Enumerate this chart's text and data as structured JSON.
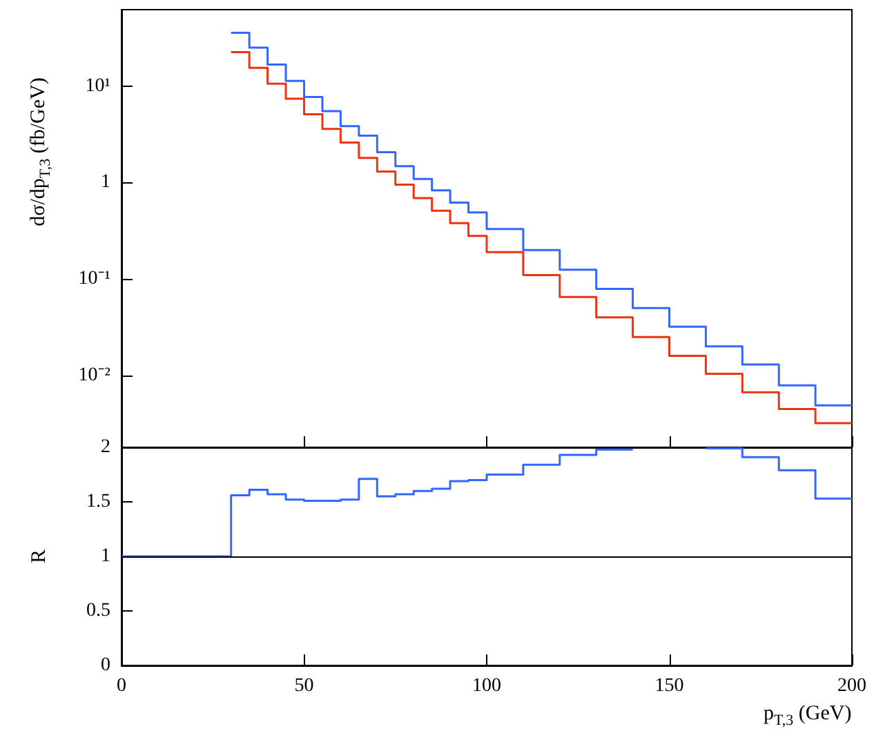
{
  "chart_data": [
    {
      "type": "step",
      "ylabel": "dσ/dp$_{T,3}$ (fb/GeV)",
      "log": "y",
      "grid": false,
      "tick_labels": "y",
      "xlim": [
        0,
        200
      ],
      "xticks": [
        0,
        50,
        100,
        150,
        200
      ],
      "ylim": [
        0.0018,
        62
      ],
      "yticks": [
        {
          "value": 0.01,
          "label": "10⁻²"
        },
        {
          "value": 0.1,
          "label": "10⁻¹"
        },
        {
          "value": 1,
          "label": "1"
        },
        {
          "value": 10,
          "label": "10¹"
        }
      ],
      "series": [
        {
          "color": "#ee3311",
          "x": [
            30,
            35,
            40,
            45,
            50,
            55,
            60,
            65,
            70,
            75,
            80,
            85,
            90,
            95,
            100,
            110,
            120,
            130,
            140,
            150,
            160,
            170,
            180,
            190,
            200
          ],
          "values": [
            22.5,
            15.5,
            10.6,
            7.4,
            5.1,
            3.6,
            2.6,
            1.8,
            1.3,
            0.95,
            0.69,
            0.51,
            0.38,
            0.28,
            0.19,
            0.11,
            0.065,
            0.04,
            0.025,
            0.016,
            0.0104,
            0.0067,
            0.0045,
            0.0032,
            0.0032
          ]
        },
        {
          "color": "#3366ff",
          "x": [
            30,
            35,
            40,
            45,
            50,
            55,
            60,
            65,
            70,
            75,
            80,
            85,
            90,
            95,
            100,
            110,
            120,
            130,
            140,
            150,
            160,
            170,
            180,
            190,
            200
          ],
          "values": [
            35.7,
            25.1,
            16.7,
            11.3,
            7.7,
            5.5,
            3.85,
            3.06,
            2.06,
            1.48,
            1.09,
            0.83,
            0.62,
            0.49,
            0.33,
            0.2,
            0.125,
            0.079,
            0.05,
            0.032,
            0.02,
            0.013,
            0.0079,
            0.0049,
            0.0049
          ]
        }
      ]
    },
    {
      "type": "step",
      "xlabel": "p$_{T,3}$ (GeV)",
      "ylabel": "R",
      "grid": false,
      "xlim": [
        0,
        200
      ],
      "xticks": [
        0,
        50,
        100,
        150,
        200
      ],
      "ylim": [
        0,
        2
      ],
      "yticks": [
        0,
        0.5,
        1,
        1.5,
        2
      ],
      "ref_lines": [
        {
          "axis": "y",
          "value": 1,
          "color": "#000000"
        }
      ],
      "series": [
        {
          "color": "#3366ff",
          "x": [
            0,
            30,
            35,
            40,
            45,
            50,
            55,
            60,
            65,
            70,
            75,
            80,
            85,
            90,
            95,
            100,
            110,
            120,
            130,
            140,
            150,
            160,
            170,
            180,
            190,
            200
          ],
          "values": [
            1,
            1.56,
            1.61,
            1.57,
            1.52,
            1.51,
            1.51,
            1.52,
            1.71,
            1.55,
            1.57,
            1.6,
            1.62,
            1.69,
            1.7,
            1.75,
            1.84,
            1.93,
            1.98,
            null,
            null,
            1.99,
            1.91,
            1.79,
            1.53,
            1.53
          ]
        }
      ]
    }
  ]
}
